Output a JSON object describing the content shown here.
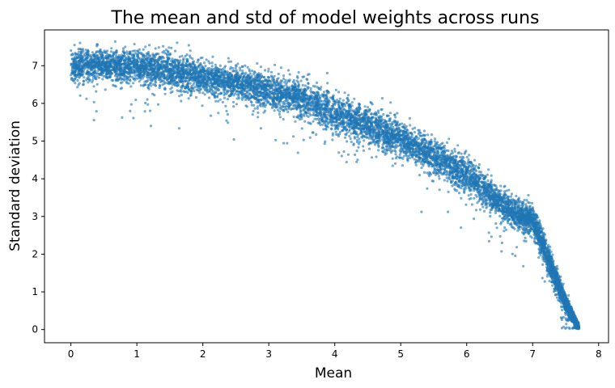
{
  "chart_data": {
    "type": "scatter",
    "title": "The mean and std of model weights across runs",
    "xlabel": "Mean",
    "ylabel": "Standard deviation",
    "xlim": [
      -0.4,
      8.15
    ],
    "ylim": [
      -0.35,
      7.95
    ],
    "xticks": [
      0,
      1,
      2,
      3,
      4,
      5,
      6,
      7,
      8
    ],
    "yticks": [
      0,
      1,
      2,
      3,
      4,
      5,
      6,
      7
    ],
    "grid": false,
    "marker_color": "#1f77b4",
    "marker_alpha": 0.6,
    "n_points": 9000,
    "trend": {
      "x": [
        0,
        0.5,
        1,
        1.5,
        2,
        2.5,
        3,
        3.5,
        4,
        4.5,
        5,
        5.5,
        6,
        6.25,
        6.5,
        6.75,
        7,
        7.25,
        7.5,
        7.7
      ],
      "y": [
        7.0,
        7.05,
        7.0,
        6.9,
        6.7,
        6.55,
        6.35,
        6.15,
        5.75,
        5.4,
        5.05,
        4.6,
        4.1,
        3.75,
        3.35,
        3.05,
        2.95,
        1.8,
        0.7,
        0.05
      ],
      "spread": [
        0.22,
        0.2,
        0.22,
        0.25,
        0.22,
        0.2,
        0.22,
        0.25,
        0.25,
        0.25,
        0.22,
        0.25,
        0.25,
        0.22,
        0.22,
        0.2,
        0.18,
        0.18,
        0.12,
        0.04
      ]
    }
  }
}
